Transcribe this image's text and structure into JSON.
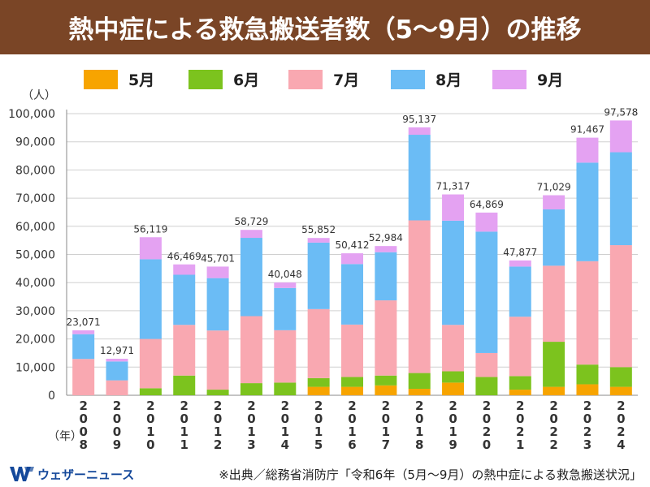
{
  "header": {
    "title": "熱中症による救急搬送者数（5〜9月）の推移"
  },
  "brand": {
    "name": "ウェザーニュース"
  },
  "source": {
    "text": "※出典／総務省消防庁「令和6年（5月〜9月）の熱中症による救急搬送状況」"
  },
  "colors": {
    "may": "#f7a400",
    "june": "#7cc31e",
    "july": "#f9a8b1",
    "august": "#6bbcf5",
    "september": "#e4a2f2",
    "header_bg": "#7a4526"
  },
  "chart_data": {
    "type": "bar",
    "stacked": true,
    "y_unit_label": "（人）",
    "x_unit_label": "（年）",
    "ylim": [
      0,
      100000
    ],
    "yticks": [
      "0",
      "10,000",
      "20,000",
      "30,000",
      "40,000",
      "50,000",
      "60,000",
      "70,000",
      "80,000",
      "90,000",
      "100,000"
    ],
    "legend_position": "top",
    "categories": [
      "2008",
      "2009",
      "2010",
      "2011",
      "2012",
      "2013",
      "2014",
      "2015",
      "2016",
      "2017",
      "2018",
      "2019",
      "2020",
      "2021",
      "2022",
      "2023",
      "2024"
    ],
    "totals": [
      "23,071",
      "12,971",
      "56,119",
      "46,469",
      "45,701",
      "58,729",
      "40,048",
      "55,852",
      "50,412",
      "52,984",
      "95,137",
      "71,317",
      "64,869",
      "47,877",
      "71,029",
      "91,467",
      "97,578"
    ],
    "series": [
      {
        "name": "5月",
        "color": "#f7a400",
        "values": [
          0,
          0,
          0,
          0,
          0,
          0,
          0,
          3000,
          3000,
          3500,
          2300,
          4500,
          0,
          2000,
          3000,
          3900,
          3000
        ]
      },
      {
        "name": "6月",
        "color": "#7cc31e",
        "values": [
          0,
          0,
          2500,
          7000,
          2000,
          4300,
          4500,
          3100,
          3500,
          3500,
          5600,
          4000,
          6500,
          4800,
          16000,
          7000,
          7000
        ]
      },
      {
        "name": "7月",
        "color": "#f9a8b1",
        "values": [
          12900,
          5300,
          17500,
          18000,
          21000,
          23800,
          18600,
          24500,
          18600,
          26700,
          54200,
          16500,
          8500,
          21100,
          27000,
          36700,
          43300
        ]
      },
      {
        "name": "8月",
        "color": "#6bbcf5",
        "values": [
          8800,
          6700,
          28300,
          17800,
          18600,
          27800,
          15000,
          23600,
          21500,
          17100,
          30400,
          37000,
          43100,
          17800,
          20000,
          35000,
          33000
        ]
      },
      {
        "name": "9月",
        "color": "#e4a2f2",
        "values": [
          1371,
          971,
          7819,
          3669,
          4101,
          2829,
          1948,
          1652,
          3812,
          2184,
          2637,
          9317,
          6769,
          2177,
          5029,
          8867,
          11278
        ]
      }
    ]
  }
}
